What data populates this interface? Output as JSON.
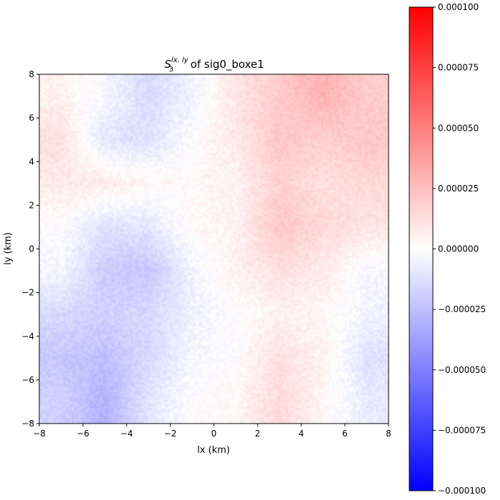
{
  "chart_data": {
    "type": "heatmap",
    "title": {
      "symbol": "S",
      "subscript": "3",
      "superscript": "lx, ly",
      "rest": " of sig0_boxe1"
    },
    "xlabel": "lx (km)",
    "ylabel": "ly (km)",
    "xlim": [
      -8,
      8
    ],
    "ylim": [
      -8,
      8
    ],
    "x_ticks": [
      "−8",
      "−6",
      "−4",
      "−2",
      "0",
      "2",
      "4",
      "6",
      "8"
    ],
    "y_ticks": [
      "−8",
      "−6",
      "−4",
      "−2",
      "0",
      "2",
      "4",
      "6",
      "8"
    ],
    "colormap": "bwr",
    "colormap_colors": [
      "#0000ff",
      "#ffffff",
      "#ff0000"
    ],
    "vmin": -0.0001,
    "vmax": 0.0001,
    "colorbar_ticks": [
      "−0.000100",
      "−0.000075",
      "−0.000050",
      "−0.000025",
      "0.000000",
      "0.000025",
      "0.000050",
      "0.000075",
      "0.000100"
    ],
    "grid_columns_x": [
      -7,
      -5,
      -3,
      -1,
      1,
      3,
      5,
      7
    ],
    "grid_rows_y": [
      7,
      5,
      3,
      1,
      -1,
      -3,
      -5,
      -7
    ],
    "values_coarse": [
      [
        5e-06,
        -3e-06,
        -1.5e-05,
        -5e-06,
        1e-05,
        2e-05,
        3e-05,
        2e-05
      ],
      [
        1.2e-05,
        -1e-05,
        -1.2e-05,
        0.0,
        8e-06,
        2.2e-05,
        1.8e-05,
        2.2e-05
      ],
      [
        8e-06,
        8e-06,
        3e-06,
        2e-06,
        5e-06,
        1.8e-05,
        1.2e-05,
        1.5e-05
      ],
      [
        0.0,
        -1.2e-05,
        -1e-05,
        2e-06,
        5e-06,
        2.2e-05,
        1.5e-05,
        1e-05
      ],
      [
        -3e-06,
        -2e-05,
        -2.2e-05,
        -5e-06,
        5e-06,
        1.2e-05,
        8e-06,
        -3e-06
      ],
      [
        -1.5e-05,
        -1.8e-05,
        -1.5e-05,
        -5e-06,
        0.0,
        5e-06,
        3e-06,
        -5e-06
      ],
      [
        -2.2e-05,
        -2.5e-05,
        -1.5e-05,
        -3e-06,
        0.0,
        1.2e-05,
        5e-06,
        -1.2e-05
      ],
      [
        -1.8e-05,
        -3e-05,
        -1e-05,
        0.0,
        3e-06,
        1.5e-05,
        3e-06,
        -8e-06
      ]
    ]
  }
}
